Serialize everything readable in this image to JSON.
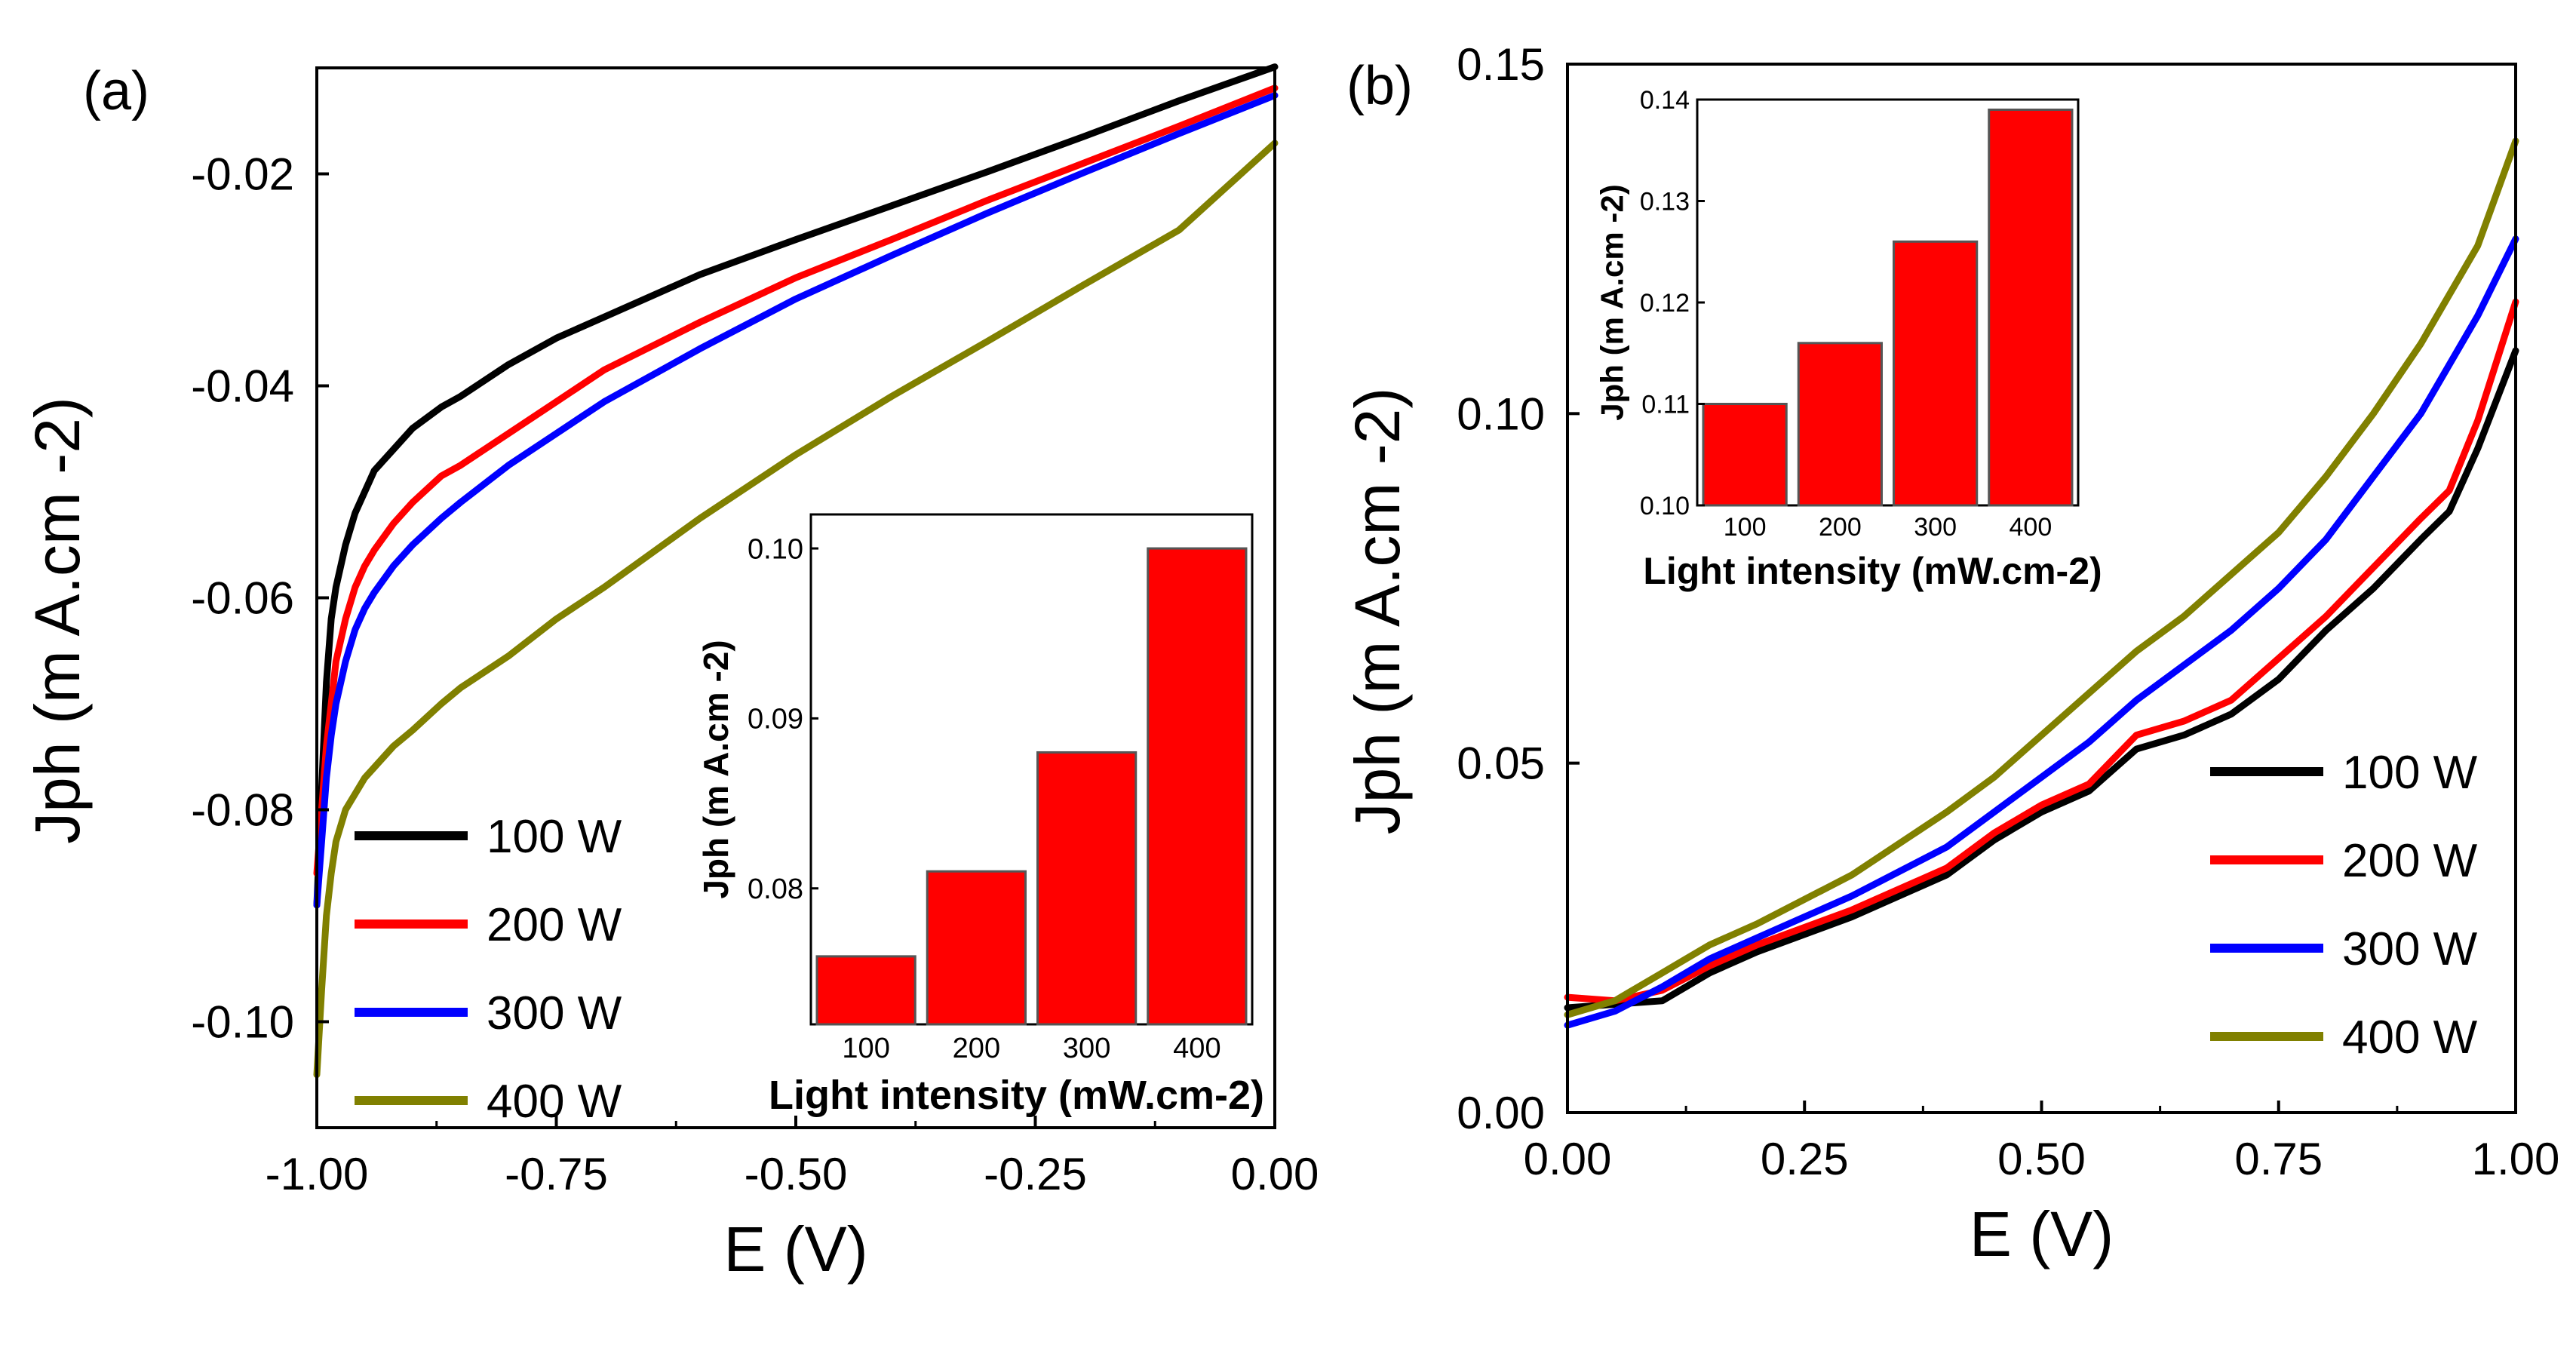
{
  "figure": {
    "colors": {
      "black": "#000000",
      "red": "#ff0000",
      "blue": "#0000ff",
      "olive": "#808000",
      "bar_fill": "#ff0000",
      "bar_stroke": "#555555"
    }
  },
  "chart_data": [
    {
      "id": "a",
      "panel_label": "(a)",
      "type": "line",
      "title": "",
      "xlabel": "E (V)",
      "ylabel": "Jph (m A.cm -2)",
      "xlim": [
        -1.0,
        0.0
      ],
      "ylim": [
        -0.11,
        -0.01
      ],
      "xticks": [
        -1.0,
        -0.75,
        -0.5,
        -0.25,
        0.0
      ],
      "xtick_labels": [
        "-1.00",
        "-0.75",
        "-0.50",
        "-0.25",
        "0.00"
      ],
      "yticks": [
        -0.02,
        -0.04,
        -0.06,
        -0.08,
        -0.1
      ],
      "ytick_labels": [
        "-0.02",
        "-0.04",
        "-0.06",
        "-0.08",
        "-0.10"
      ],
      "legend_position": "lower-left",
      "series": [
        {
          "name": "100 W",
          "color": "#000000",
          "x": [
            -1.0,
            -0.995,
            -0.99,
            -0.985,
            -0.98,
            -0.97,
            -0.96,
            -0.95,
            -0.94,
            -0.92,
            -0.9,
            -0.87,
            -0.85,
            -0.8,
            -0.75,
            -0.7,
            -0.6,
            -0.5,
            -0.4,
            -0.3,
            -0.2,
            -0.1,
            0.0
          ],
          "y": [
            -0.089,
            -0.078,
            -0.068,
            -0.062,
            -0.059,
            -0.055,
            -0.052,
            -0.05,
            -0.048,
            -0.046,
            -0.044,
            -0.042,
            -0.041,
            -0.038,
            -0.0355,
            -0.0335,
            -0.0295,
            -0.0262,
            -0.023,
            -0.0198,
            -0.0165,
            -0.0131,
            -0.0099
          ]
        },
        {
          "name": "200 W",
          "color": "#ff0000",
          "x": [
            -1.0,
            -0.995,
            -0.99,
            -0.985,
            -0.98,
            -0.97,
            -0.96,
            -0.95,
            -0.94,
            -0.92,
            -0.9,
            -0.87,
            -0.85,
            -0.8,
            -0.75,
            -0.7,
            -0.6,
            -0.5,
            -0.4,
            -0.3,
            -0.2,
            -0.1,
            0.0
          ],
          "y": [
            -0.086,
            -0.08,
            -0.074,
            -0.07,
            -0.066,
            -0.062,
            -0.059,
            -0.057,
            -0.0555,
            -0.053,
            -0.051,
            -0.0485,
            -0.0475,
            -0.0445,
            -0.0415,
            -0.0385,
            -0.034,
            -0.0298,
            -0.0262,
            -0.0225,
            -0.019,
            -0.0155,
            -0.0119
          ]
        },
        {
          "name": "300 W",
          "color": "#0000ff",
          "x": [
            -1.0,
            -0.995,
            -0.99,
            -0.985,
            -0.98,
            -0.97,
            -0.96,
            -0.95,
            -0.94,
            -0.92,
            -0.9,
            -0.87,
            -0.85,
            -0.8,
            -0.75,
            -0.7,
            -0.6,
            -0.5,
            -0.4,
            -0.3,
            -0.2,
            -0.1,
            0.0
          ],
          "y": [
            -0.089,
            -0.083,
            -0.077,
            -0.073,
            -0.07,
            -0.066,
            -0.063,
            -0.061,
            -0.0595,
            -0.057,
            -0.055,
            -0.0525,
            -0.051,
            -0.0475,
            -0.0445,
            -0.0415,
            -0.0365,
            -0.0318,
            -0.0277,
            -0.0237,
            -0.0199,
            -0.0162,
            -0.0126
          ]
        },
        {
          "name": "400 W",
          "color": "#808000",
          "x": [
            -1.0,
            -0.995,
            -0.99,
            -0.985,
            -0.98,
            -0.97,
            -0.96,
            -0.95,
            -0.94,
            -0.92,
            -0.9,
            -0.87,
            -0.85,
            -0.8,
            -0.75,
            -0.7,
            -0.6,
            -0.5,
            -0.4,
            -0.3,
            -0.2,
            -0.1,
            0.0
          ],
          "y": [
            -0.105,
            -0.097,
            -0.09,
            -0.086,
            -0.083,
            -0.08,
            -0.0785,
            -0.077,
            -0.076,
            -0.074,
            -0.0725,
            -0.07,
            -0.0685,
            -0.0655,
            -0.062,
            -0.059,
            -0.0525,
            -0.0465,
            -0.041,
            -0.0358,
            -0.0305,
            -0.0253,
            -0.0171
          ]
        }
      ],
      "inset": {
        "type": "bar",
        "xlabel": "Light intensity (mW.cm-2)",
        "ylabel": "Jph (m A.cm -2)",
        "categories": [
          "100",
          "200",
          "300",
          "400"
        ],
        "values": [
          0.076,
          0.081,
          0.088,
          0.1
        ],
        "ylim": [
          0.072,
          0.102
        ],
        "yticks": [
          0.08,
          0.09,
          0.1
        ],
        "ytick_labels": [
          "0.08",
          "0.09",
          "0.10"
        ]
      }
    },
    {
      "id": "b",
      "panel_label": "(b)",
      "type": "line",
      "title": "",
      "xlabel": "E (V)",
      "ylabel": "Jph (m A.cm -2)",
      "xlim": [
        0.0,
        1.0
      ],
      "ylim": [
        0.0,
        0.15
      ],
      "xticks": [
        0.0,
        0.25,
        0.5,
        0.75,
        1.0
      ],
      "xtick_labels": [
        "0.00",
        "0.25",
        "0.50",
        "0.75",
        "1.00"
      ],
      "yticks": [
        0.0,
        0.05,
        0.1,
        0.15
      ],
      "ytick_labels": [
        "0.00",
        "0.05",
        "0.10",
        "0.15"
      ],
      "legend_position": "lower-right",
      "series": [
        {
          "name": "100 W",
          "color": "#000000",
          "x": [
            0.0,
            0.05,
            0.1,
            0.15,
            0.2,
            0.3,
            0.4,
            0.45,
            0.5,
            0.55,
            0.6,
            0.65,
            0.7,
            0.75,
            0.8,
            0.85,
            0.9,
            0.93,
            0.96,
            1.0
          ],
          "y": [
            0.015,
            0.0155,
            0.016,
            0.02,
            0.023,
            0.028,
            0.034,
            0.039,
            0.043,
            0.046,
            0.052,
            0.054,
            0.057,
            0.062,
            0.069,
            0.075,
            0.082,
            0.086,
            0.095,
            0.109
          ]
        },
        {
          "name": "200 W",
          "color": "#ff0000",
          "x": [
            0.0,
            0.05,
            0.1,
            0.15,
            0.2,
            0.3,
            0.4,
            0.45,
            0.5,
            0.55,
            0.6,
            0.65,
            0.7,
            0.75,
            0.8,
            0.85,
            0.9,
            0.93,
            0.96,
            1.0
          ],
          "y": [
            0.0165,
            0.016,
            0.0175,
            0.021,
            0.024,
            0.029,
            0.035,
            0.04,
            0.044,
            0.047,
            0.054,
            0.056,
            0.059,
            0.065,
            0.071,
            0.078,
            0.085,
            0.089,
            0.099,
            0.116
          ]
        },
        {
          "name": "300 W",
          "color": "#0000ff",
          "x": [
            0.0,
            0.05,
            0.1,
            0.15,
            0.2,
            0.3,
            0.4,
            0.45,
            0.5,
            0.55,
            0.6,
            0.65,
            0.7,
            0.75,
            0.8,
            0.85,
            0.9,
            0.93,
            0.96,
            1.0
          ],
          "y": [
            0.0125,
            0.0145,
            0.018,
            0.022,
            0.025,
            0.031,
            0.038,
            0.043,
            0.048,
            0.053,
            0.059,
            0.064,
            0.069,
            0.075,
            0.082,
            0.091,
            0.1,
            0.107,
            0.114,
            0.125
          ]
        },
        {
          "name": "400 W",
          "color": "#808000",
          "x": [
            0.0,
            0.05,
            0.1,
            0.15,
            0.2,
            0.3,
            0.4,
            0.45,
            0.5,
            0.55,
            0.6,
            0.65,
            0.7,
            0.75,
            0.8,
            0.85,
            0.9,
            0.93,
            0.96,
            1.0
          ],
          "y": [
            0.014,
            0.016,
            0.02,
            0.024,
            0.027,
            0.034,
            0.043,
            0.048,
            0.054,
            0.06,
            0.066,
            0.071,
            0.077,
            0.083,
            0.091,
            0.1,
            0.11,
            0.117,
            0.124,
            0.139
          ]
        }
      ],
      "inset": {
        "type": "bar",
        "xlabel": "Light intensity (mW.cm-2)",
        "ylabel": "Jph (m A.cm -2)",
        "categories": [
          "100",
          "200",
          "300",
          "400"
        ],
        "values": [
          0.11,
          0.116,
          0.126,
          0.139
        ],
        "ylim": [
          0.1,
          0.14
        ],
        "yticks": [
          0.1,
          0.11,
          0.12,
          0.13,
          0.14
        ],
        "ytick_labels": [
          "0.10",
          "0.11",
          "0.12",
          "0.13",
          "0.14"
        ]
      }
    }
  ]
}
